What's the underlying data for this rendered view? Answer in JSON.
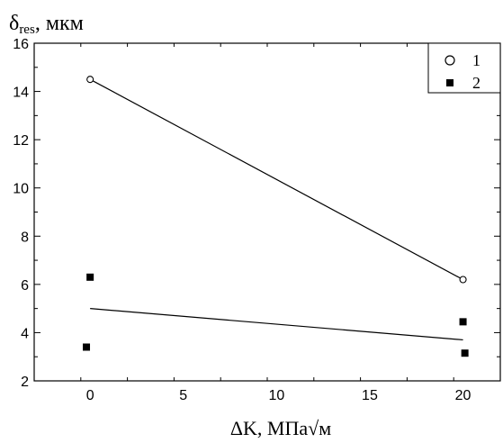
{
  "chart_data": {
    "type": "scatter",
    "ylabel_main": "δ",
    "ylabel_sub": "res",
    "ylabel_unit": ", мкм",
    "xlabel": "ΔK, МПа√м",
    "xlim": [
      -3,
      22
    ],
    "ylim": [
      2,
      16
    ],
    "xticks": [
      "0",
      "5",
      "10",
      "15",
      "20"
    ],
    "xtick_values": [
      0,
      5,
      10,
      15,
      20
    ],
    "yticks": [
      "2",
      "4",
      "6",
      "8",
      "10",
      "12",
      "14",
      "16"
    ],
    "ytick_values": [
      2,
      4,
      6,
      8,
      10,
      12,
      14,
      16
    ],
    "grid": false,
    "legend_position": "top-right",
    "series": [
      {
        "name": "1",
        "marker": "open-circle",
        "points": [
          {
            "x": 0,
            "y": 14.5
          },
          {
            "x": 20,
            "y": 6.2
          }
        ],
        "fit_line": [
          {
            "x": 0,
            "y": 14.5
          },
          {
            "x": 20,
            "y": 6.2
          }
        ]
      },
      {
        "name": "2",
        "marker": "filled-square",
        "points": [
          {
            "x": 0,
            "y": 6.3
          },
          {
            "x": -0.2,
            "y": 3.4
          },
          {
            "x": 20,
            "y": 4.45
          },
          {
            "x": 20.1,
            "y": 3.15
          }
        ],
        "fit_line": [
          {
            "x": 0,
            "y": 5.0
          },
          {
            "x": 20,
            "y": 3.7
          }
        ]
      }
    ],
    "colors": {
      "axis": "#000000",
      "marker": "#000000",
      "background": "#ffffff"
    }
  }
}
